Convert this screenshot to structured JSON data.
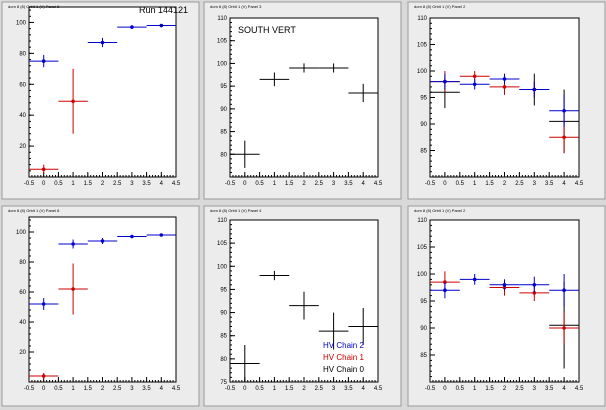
{
  "run_label": "Run 144121",
  "legend": [
    {
      "label": "HV Chain 2",
      "color": "#0000cc"
    },
    {
      "label": "HV Chain 1",
      "color": "#cc0000"
    },
    {
      "label": "HV Chain 0",
      "color": "#000000"
    }
  ],
  "colors": {
    "chain2": "#0000cc",
    "chain1": "#cc0000",
    "chain0": "#000000"
  },
  "chart_data": [
    {
      "type": "scatter",
      "title": "dom 8 (8) Orbit 1 (V) Panel 8",
      "xlim": [
        -0.5,
        4.5
      ],
      "ylim": [
        0,
        110
      ],
      "xticks": [
        "-0.5",
        "0",
        "0.5",
        "1",
        "1.5",
        "2",
        "2.5",
        "3",
        "3.5",
        "4",
        "4.5"
      ],
      "yticks": [
        "20",
        "40",
        "60",
        "80",
        "100"
      ],
      "annotation": "",
      "series": [
        {
          "color": "#0000cc",
          "points": [
            {
              "x": 0,
              "y": 75,
              "xerr": 0.5,
              "yerr": 4
            },
            {
              "x": 2,
              "y": 87,
              "xerr": 0.5,
              "yerr": 3
            },
            {
              "x": 3,
              "y": 97,
              "xerr": 0.5,
              "yerr": 1
            },
            {
              "x": 4,
              "y": 98,
              "xerr": 0.5,
              "yerr": 1
            }
          ]
        },
        {
          "color": "#cc0000",
          "points": [
            {
              "x": 0,
              "y": 5,
              "xerr": 0.5,
              "yerr": 3
            },
            {
              "x": 1,
              "y": 49,
              "xerr": 0.5,
              "yerr": 21
            }
          ]
        }
      ]
    },
    {
      "type": "scatter",
      "title": "dom 8 (8) Orbit 1 (V) Panel 3",
      "xlim": [
        -0.5,
        4.5
      ],
      "ylim": [
        75,
        110
      ],
      "xticks": [
        "-0.5",
        "0",
        "0.5",
        "1",
        "1.5",
        "2",
        "2.5",
        "3",
        "3.5",
        "4",
        "4.5"
      ],
      "yticks": [
        "80",
        "85",
        "90",
        "95",
        "100",
        "105",
        "110"
      ],
      "annotation": "SOUTH VERT",
      "series": [
        {
          "color": "#000000",
          "points": [
            {
              "x": 0,
              "y": 80,
              "xerr": 0.5,
              "yerr": 3
            },
            {
              "x": 1,
              "y": 96.5,
              "xerr": 0.5,
              "yerr": 1.5
            },
            {
              "x": 2,
              "y": 99,
              "xerr": 0.5,
              "yerr": 1
            },
            {
              "x": 3,
              "y": 99,
              "xerr": 0.5,
              "yerr": 1
            },
            {
              "x": 4,
              "y": 93.5,
              "xerr": 0.5,
              "yerr": 2
            }
          ]
        }
      ]
    },
    {
      "type": "scatter",
      "title": "dom 8 (8) Orbit 1 (V) Panel 2",
      "xlim": [
        -0.5,
        4.5
      ],
      "ylim": [
        80,
        110
      ],
      "xticks": [
        "-0.5",
        "0",
        "0.5",
        "1",
        "1.5",
        "2",
        "2.5",
        "3",
        "3.5",
        "4",
        "4.5"
      ],
      "yticks": [
        "85",
        "90",
        "95",
        "100",
        "105",
        "110"
      ],
      "annotation": "",
      "series": [
        {
          "color": "#000000",
          "points": [
            {
              "x": 0,
              "y": 96,
              "xerr": 0.5,
              "yerr": 3
            },
            {
              "x": 3,
              "y": 96.5,
              "xerr": 0.5,
              "yerr": 3
            },
            {
              "x": 4,
              "y": 90.5,
              "xerr": 0.5,
              "yerr": 6
            }
          ]
        },
        {
          "color": "#cc0000",
          "points": [
            {
              "x": 0,
              "y": 98,
              "xerr": 0.5,
              "yerr": 2
            },
            {
              "x": 1,
              "y": 99,
              "xerr": 0.5,
              "yerr": 1
            },
            {
              "x": 2,
              "y": 97,
              "xerr": 0.5,
              "yerr": 1.5
            },
            {
              "x": 3,
              "y": 96.5,
              "xerr": 0.5,
              "yerr": 1.5
            },
            {
              "x": 4,
              "y": 87.5,
              "xerr": 0.5,
              "yerr": 3
            }
          ]
        },
        {
          "color": "#0000cc",
          "points": [
            {
              "x": 0,
              "y": 98,
              "xerr": 0.5,
              "yerr": 1.5
            },
            {
              "x": 1,
              "y": 97.5,
              "xerr": 0.5,
              "yerr": 1
            },
            {
              "x": 2,
              "y": 98.5,
              "xerr": 0.5,
              "yerr": 1
            },
            {
              "x": 3,
              "y": 96.5,
              "xerr": 0.5,
              "yerr": 1.5
            },
            {
              "x": 4,
              "y": 92.5,
              "xerr": 0.5,
              "yerr": 3
            }
          ]
        }
      ]
    },
    {
      "type": "scatter",
      "title": "dom 8 (8) Orbit 1 (V) Panel 8",
      "xlim": [
        -0.5,
        4.5
      ],
      "ylim": [
        0,
        110
      ],
      "xticks": [
        "-0.5",
        "0",
        "0.5",
        "1",
        "1.5",
        "2",
        "2.5",
        "3",
        "3.5",
        "4",
        "4.5"
      ],
      "yticks": [
        "20",
        "40",
        "60",
        "80",
        "100"
      ],
      "annotation": "",
      "series": [
        {
          "color": "#0000cc",
          "points": [
            {
              "x": 0,
              "y": 52,
              "xerr": 0.5,
              "yerr": 4
            },
            {
              "x": 1,
              "y": 92,
              "xerr": 0.5,
              "yerr": 3
            },
            {
              "x": 2,
              "y": 94,
              "xerr": 0.5,
              "yerr": 2
            },
            {
              "x": 3,
              "y": 97,
              "xerr": 0.5,
              "yerr": 1
            },
            {
              "x": 4,
              "y": 98,
              "xerr": 0.5,
              "yerr": 1
            }
          ]
        },
        {
          "color": "#cc0000",
          "points": [
            {
              "x": 0,
              "y": 4,
              "xerr": 0.5,
              "yerr": 2
            },
            {
              "x": 1,
              "y": 62,
              "xerr": 0.5,
              "yerr": 17
            }
          ]
        }
      ]
    },
    {
      "type": "scatter",
      "title": "dom 8 (8) Orbit 1 (V) Panel 4",
      "xlim": [
        -0.5,
        4.5
      ],
      "ylim": [
        75,
        110
      ],
      "xticks": [
        "-0.5",
        "0",
        "0.5",
        "1",
        "1.5",
        "2",
        "2.5",
        "3",
        "3.5",
        "4",
        "4.5"
      ],
      "yticks": [
        "75",
        "80",
        "85",
        "90",
        "95",
        "100",
        "105",
        "110"
      ],
      "annotation": "",
      "series": [
        {
          "color": "#000000",
          "points": [
            {
              "x": 0,
              "y": 79,
              "xerr": 0.5,
              "yerr": 4
            },
            {
              "x": 1,
              "y": 98,
              "xerr": 0.5,
              "yerr": 1
            },
            {
              "x": 2,
              "y": 91.5,
              "xerr": 0.5,
              "yerr": 3
            },
            {
              "x": 3,
              "y": 86,
              "xerr": 0.5,
              "yerr": 4
            },
            {
              "x": 4,
              "y": 87,
              "xerr": 0.5,
              "yerr": 4
            }
          ]
        }
      ]
    },
    {
      "type": "scatter",
      "title": "dom 8 (8) Orbit 1 (V) Panel 2",
      "xlim": [
        -0.5,
        4.5
      ],
      "ylim": [
        80,
        110
      ],
      "xticks": [
        "-0.5",
        "0",
        "0.5",
        "1",
        "1.5",
        "2",
        "2.5",
        "3",
        "3.5",
        "4",
        "4.5"
      ],
      "yticks": [
        "85",
        "90",
        "95",
        "100",
        "105",
        "110"
      ],
      "annotation": "",
      "series": [
        {
          "color": "#000000",
          "points": [
            {
              "x": 4,
              "y": 90.5,
              "xerr": 0.5,
              "yerr": 8
            }
          ]
        },
        {
          "color": "#cc0000",
          "points": [
            {
              "x": 0,
              "y": 98.5,
              "xerr": 0.5,
              "yerr": 2
            },
            {
              "x": 2,
              "y": 97.5,
              "xerr": 0.5,
              "yerr": 1.5
            },
            {
              "x": 3,
              "y": 96.5,
              "xerr": 0.5,
              "yerr": 1.5
            },
            {
              "x": 4,
              "y": 90,
              "xerr": 0.5,
              "yerr": 3
            }
          ]
        },
        {
          "color": "#0000cc",
          "points": [
            {
              "x": 0,
              "y": 97,
              "xerr": 0.5,
              "yerr": 1.5
            },
            {
              "x": 1,
              "y": 99,
              "xerr": 0.5,
              "yerr": 1
            },
            {
              "x": 2,
              "y": 98,
              "xerr": 0.5,
              "yerr": 1
            },
            {
              "x": 3,
              "y": 98,
              "xerr": 0.5,
              "yerr": 1.5
            },
            {
              "x": 4,
              "y": 97,
              "xerr": 0.5,
              "yerr": 3
            }
          ]
        }
      ]
    }
  ]
}
